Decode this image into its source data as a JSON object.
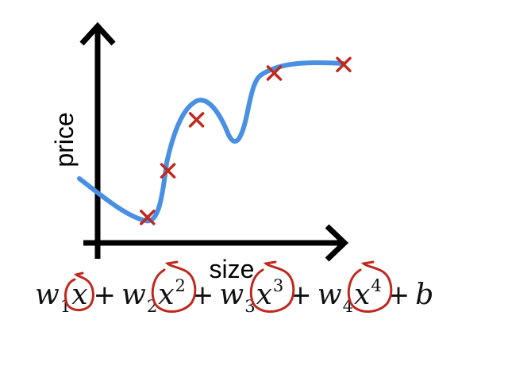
{
  "diagram": {
    "x_axis_label": "size",
    "y_axis_label": "price",
    "colors": {
      "curve": "#4a90e2",
      "points": "#c0281e",
      "axes": "#000000",
      "annotation": "#c0281e"
    },
    "data_points": [
      {
        "x": 1.2,
        "y": 0.6
      },
      {
        "x": 1.7,
        "y": 1.7
      },
      {
        "x": 2.4,
        "y": 2.9
      },
      {
        "x": 4.3,
        "y": 4.0
      },
      {
        "x": 6.0,
        "y": 4.2
      }
    ]
  },
  "formula": {
    "terms": [
      {
        "coef": "w",
        "sub": "1",
        "var": "x",
        "power": ""
      },
      {
        "coef": "w",
        "sub": "2",
        "var": "x",
        "power": "2"
      },
      {
        "coef": "w",
        "sub": "3",
        "var": "x",
        "power": "3"
      },
      {
        "coef": "w",
        "sub": "4",
        "var": "x",
        "power": "4"
      }
    ],
    "plus": "+",
    "bias": "b"
  }
}
